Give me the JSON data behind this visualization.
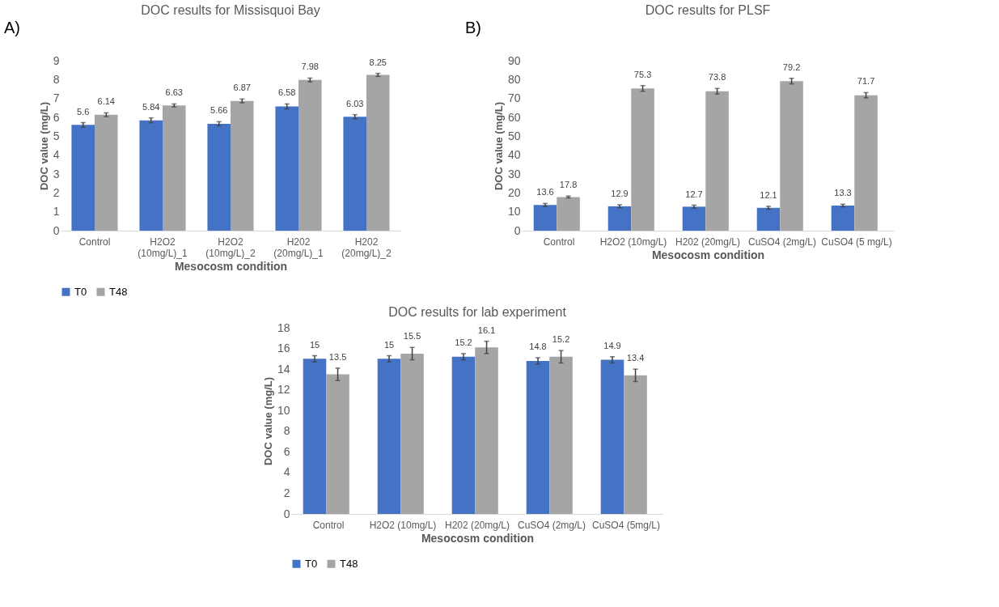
{
  "chart_data": [
    {
      "type": "bar",
      "title": "DOC results for Missisquoi Bay",
      "xlabel": "Mesocosm condition",
      "ylabel": "DOC value (mg/L)",
      "annotations": [
        "A)"
      ],
      "categories": [
        "Control",
        "H2O2 (10mg/L)_1",
        "H2O2 (10mg/L)_2",
        "H202 (20mg/L)_1",
        "H202 (20mg/L)_2"
      ],
      "series": [
        {
          "name": "T0",
          "color": "#4472c4",
          "values": [
            5.6,
            5.84,
            5.66,
            6.58,
            6.03
          ],
          "errors": [
            0.12,
            0.13,
            0.11,
            0.13,
            0.11
          ]
        },
        {
          "name": "T48",
          "color": "#a5a5a5",
          "values": [
            6.14,
            6.63,
            6.87,
            7.98,
            8.25
          ],
          "errors": [
            0.1,
            0.08,
            0.1,
            0.1,
            0.08
          ]
        }
      ],
      "ylim": [
        0,
        9
      ],
      "yticks": [
        0,
        1,
        2,
        3,
        4,
        5,
        6,
        7,
        8,
        9
      ],
      "data_labels": true,
      "grid": false,
      "legend": "bottom"
    },
    {
      "type": "bar",
      "title": "DOC results for PLSF",
      "xlabel": "Mesocosm condition",
      "ylabel": "DOC value (mg/L)",
      "annotations": [
        "B)"
      ],
      "categories": [
        "Control",
        "H2O2 (10mg/L)",
        "H202 (20mg/L)",
        "CuSO4 (2mg/L)",
        "CuSO4 (5 mg/L)"
      ],
      "series": [
        {
          "name": "T0",
          "color": "#4472c4",
          "values": [
            13.6,
            12.9,
            12.7,
            12.1,
            13.3
          ],
          "errors": [
            0.8,
            0.8,
            0.8,
            0.8,
            0.7
          ]
        },
        {
          "name": "T48",
          "color": "#a5a5a5",
          "values": [
            17.8,
            75.3,
            73.8,
            79.2,
            71.7
          ],
          "errors": [
            0.5,
            1.5,
            1.5,
            1.5,
            1.4
          ]
        }
      ],
      "ylim": [
        0,
        90
      ],
      "yticks": [
        0,
        10,
        20,
        30,
        40,
        50,
        60,
        70,
        80,
        90
      ],
      "data_labels": true,
      "grid": false,
      "legend": "bottom"
    },
    {
      "type": "bar",
      "title": "DOC results for lab experiment",
      "xlabel": "Mesocosm condition",
      "ylabel": "DOC value (mg/L)",
      "categories": [
        "Control",
        "H2O2 (10mg/L)",
        "H202 (20mg/L)",
        "CuSO4 (2mg/L)",
        "CuSO4 (5mg/L)"
      ],
      "series": [
        {
          "name": "T0",
          "color": "#4472c4",
          "values": [
            15,
            15,
            15.2,
            14.8,
            14.9
          ],
          "errors": [
            0.3,
            0.3,
            0.3,
            0.3,
            0.3
          ]
        },
        {
          "name": "T48",
          "color": "#a5a5a5",
          "values": [
            13.5,
            15.5,
            16.1,
            15.2,
            13.4
          ],
          "errors": [
            0.6,
            0.6,
            0.6,
            0.6,
            0.6
          ]
        }
      ],
      "ylim": [
        0,
        18
      ],
      "yticks": [
        0,
        2,
        4,
        6,
        8,
        10,
        12,
        14,
        16,
        18
      ],
      "data_labels": true,
      "grid": false,
      "legend": "bottom"
    }
  ]
}
